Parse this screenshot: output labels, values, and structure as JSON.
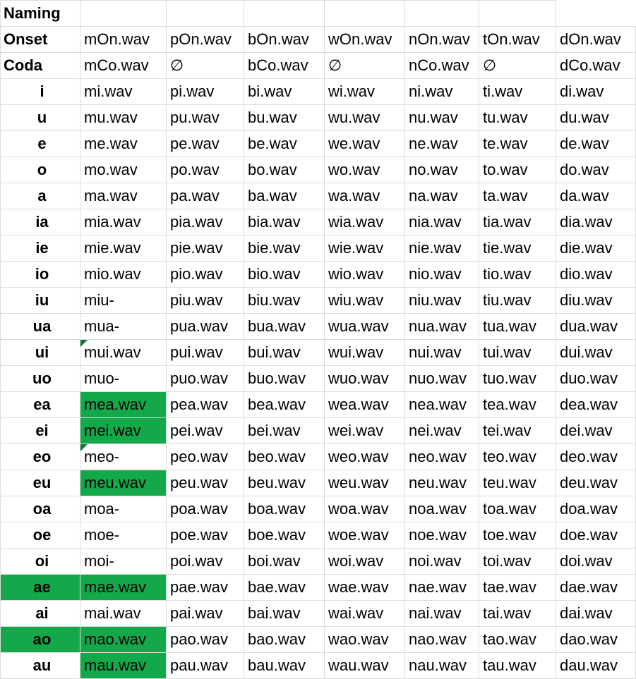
{
  "sheet": {
    "colors": {
      "green_text": "#1aa84a",
      "red_text": "#e0281e",
      "green_fill": "#13a84a",
      "gridline": "#dcdcdc"
    },
    "header": {
      "title": "Naming"
    },
    "onset": {
      "label": "Onset",
      "cells": [
        "mOn.wav",
        "pOn.wav",
        "bOn.wav",
        "wOn.wav",
        "nOn.wav",
        "tOn.wav",
        "dOn.wav"
      ]
    },
    "coda": {
      "label": "Coda",
      "cells": [
        "mCo.wav",
        "∅",
        "bCo.wav",
        "∅",
        "nCo.wav",
        "∅",
        "dCo.wav"
      ]
    },
    "rows": [
      {
        "label": "i",
        "cells": [
          "mi.wav",
          "pi.wav",
          "bi.wav",
          "wi.wav",
          "ni.wav",
          "ti.wav",
          "di.wav"
        ]
      },
      {
        "label": "u",
        "cells": [
          "mu.wav",
          "pu.wav",
          "bu.wav",
          "wu.wav",
          "nu.wav",
          "tu.wav",
          "du.wav"
        ]
      },
      {
        "label": "e",
        "cells": [
          "me.wav",
          "pe.wav",
          "be.wav",
          "we.wav",
          "ne.wav",
          "te.wav",
          "de.wav"
        ]
      },
      {
        "label": "o",
        "cells": [
          "mo.wav",
          "po.wav",
          "bo.wav",
          "wo.wav",
          "no.wav",
          "to.wav",
          "do.wav"
        ]
      },
      {
        "label": "a",
        "cells": [
          "ma.wav",
          "pa.wav",
          "ba.wav",
          "wa.wav",
          "na.wav",
          "ta.wav",
          "da.wav"
        ]
      },
      {
        "label": "ia",
        "cells": [
          "mia.wav",
          "pia.wav",
          "bia.wav",
          "wia.wav",
          "nia.wav",
          "tia.wav",
          "dia.wav"
        ]
      },
      {
        "label": "ie",
        "cells": [
          "mie.wav",
          "pie.wav",
          "bie.wav",
          "wie.wav",
          "nie.wav",
          "tie.wav",
          "die.wav"
        ]
      },
      {
        "label": "io",
        "cells": [
          "mio.wav",
          "pio.wav",
          "bio.wav",
          "wio.wav",
          "nio.wav",
          "tio.wav",
          "dio.wav"
        ]
      },
      {
        "label": "iu",
        "cells": [
          "miu-",
          "piu.wav",
          "biu.wav",
          "wiu.wav",
          "niu.wav",
          "tiu.wav",
          "diu.wav"
        ]
      },
      {
        "label": "ua",
        "cells": [
          "mua-",
          "pua.wav",
          "bua.wav",
          "wua.wav",
          "nua.wav",
          "tua.wav",
          "dua.wav"
        ]
      },
      {
        "label": "ui",
        "cells": [
          "mui.wav",
          "pui.wav",
          "bui.wav",
          "wui.wav",
          "nui.wav",
          "tui.wav",
          "dui.wav"
        ]
      },
      {
        "label": "uo",
        "cells": [
          "muo-",
          "puo.wav",
          "buo.wav",
          "wuo.wav",
          "nuo.wav",
          "tuo.wav",
          "duo.wav"
        ]
      },
      {
        "label": "ea",
        "cells": [
          "mea.wav",
          "pea.wav",
          "bea.wav",
          "wea.wav",
          "nea.wav",
          "tea.wav",
          "dea.wav"
        ]
      },
      {
        "label": "ei",
        "cells": [
          "mei.wav",
          "pei.wav",
          "bei.wav",
          "wei.wav",
          "nei.wav",
          "tei.wav",
          "dei.wav"
        ]
      },
      {
        "label": "eo",
        "cells": [
          "meo-",
          "peo.wav",
          "beo.wav",
          "weo.wav",
          "neo.wav",
          "teo.wav",
          "deo.wav"
        ]
      },
      {
        "label": "eu",
        "cells": [
          "meu.wav",
          "peu.wav",
          "beu.wav",
          "weu.wav",
          "neu.wav",
          "teu.wav",
          "deu.wav"
        ]
      },
      {
        "label": "oa",
        "cells": [
          "moa-",
          "poa.wav",
          "boa.wav",
          "woa.wav",
          "noa.wav",
          "toa.wav",
          "doa.wav"
        ]
      },
      {
        "label": "oe",
        "cells": [
          "moe-",
          "poe.wav",
          "boe.wav",
          "woe.wav",
          "noe.wav",
          "toe.wav",
          "doe.wav"
        ]
      },
      {
        "label": "oi",
        "cells": [
          "moi-",
          "poi.wav",
          "boi.wav",
          "woi.wav",
          "noi.wav",
          "toi.wav",
          "doi.wav"
        ]
      },
      {
        "label": "ae",
        "cells": [
          "mae.wav",
          "pae.wav",
          "bae.wav",
          "wae.wav",
          "nae.wav",
          "tae.wav",
          "dae.wav"
        ]
      },
      {
        "label": "ai",
        "cells": [
          "mai.wav",
          "pai.wav",
          "bai.wav",
          "wai.wav",
          "nai.wav",
          "tai.wav",
          "dai.wav"
        ]
      },
      {
        "label": "ao",
        "cells": [
          "mao.wav",
          "pao.wav",
          "bao.wav",
          "wao.wav",
          "nao.wav",
          "tao.wav",
          "dao.wav"
        ]
      },
      {
        "label": "au",
        "cells": [
          "mau.wav",
          "pau.wav",
          "bau.wav",
          "wau.wav",
          "nau.wav",
          "tau.wav",
          "dau.wav"
        ]
      }
    ]
  }
}
